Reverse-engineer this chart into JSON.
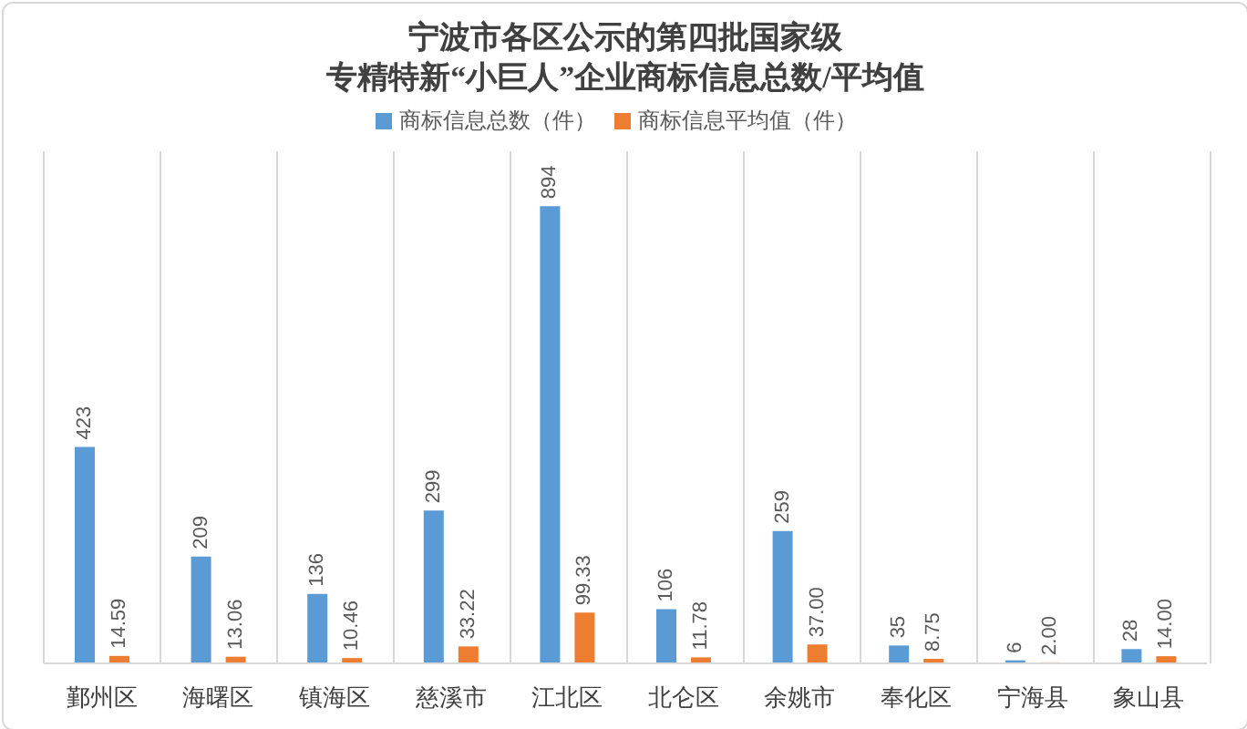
{
  "chart_data": {
    "type": "bar",
    "title": "宁波市各区公示的第四批国家级",
    "subtitle": "专精特新“小巨人”企业商标信息总数/平均值",
    "categories": [
      "鄞州区",
      "海曙区",
      "镇海区",
      "慈溪市",
      "江北区",
      "北仑区",
      "余姚市",
      "奉化区",
      "宁海县",
      "象山县"
    ],
    "series": [
      {
        "name": "商标信息总数（件）",
        "color": "#5b9bd5",
        "values": [
          423,
          209,
          136,
          299,
          894,
          106,
          259,
          35,
          6,
          28
        ],
        "value_labels": [
          "423",
          "209",
          "136",
          "299",
          "894",
          "106",
          "259",
          "35",
          "6",
          "28"
        ]
      },
      {
        "name": "商标信息平均值（件）",
        "color": "#ed7d31",
        "values": [
          14.59,
          13.06,
          10.46,
          33.22,
          99.33,
          11.78,
          37.0,
          8.75,
          2.0,
          14.0
        ],
        "value_labels": [
          "14.59",
          "13.06",
          "10.46",
          "33.22",
          "99.33",
          "11.78",
          "37.00",
          "8.75",
          "2.00",
          "14.00"
        ]
      }
    ],
    "legend": "top",
    "grid": "x",
    "tick_labels": "x"
  }
}
